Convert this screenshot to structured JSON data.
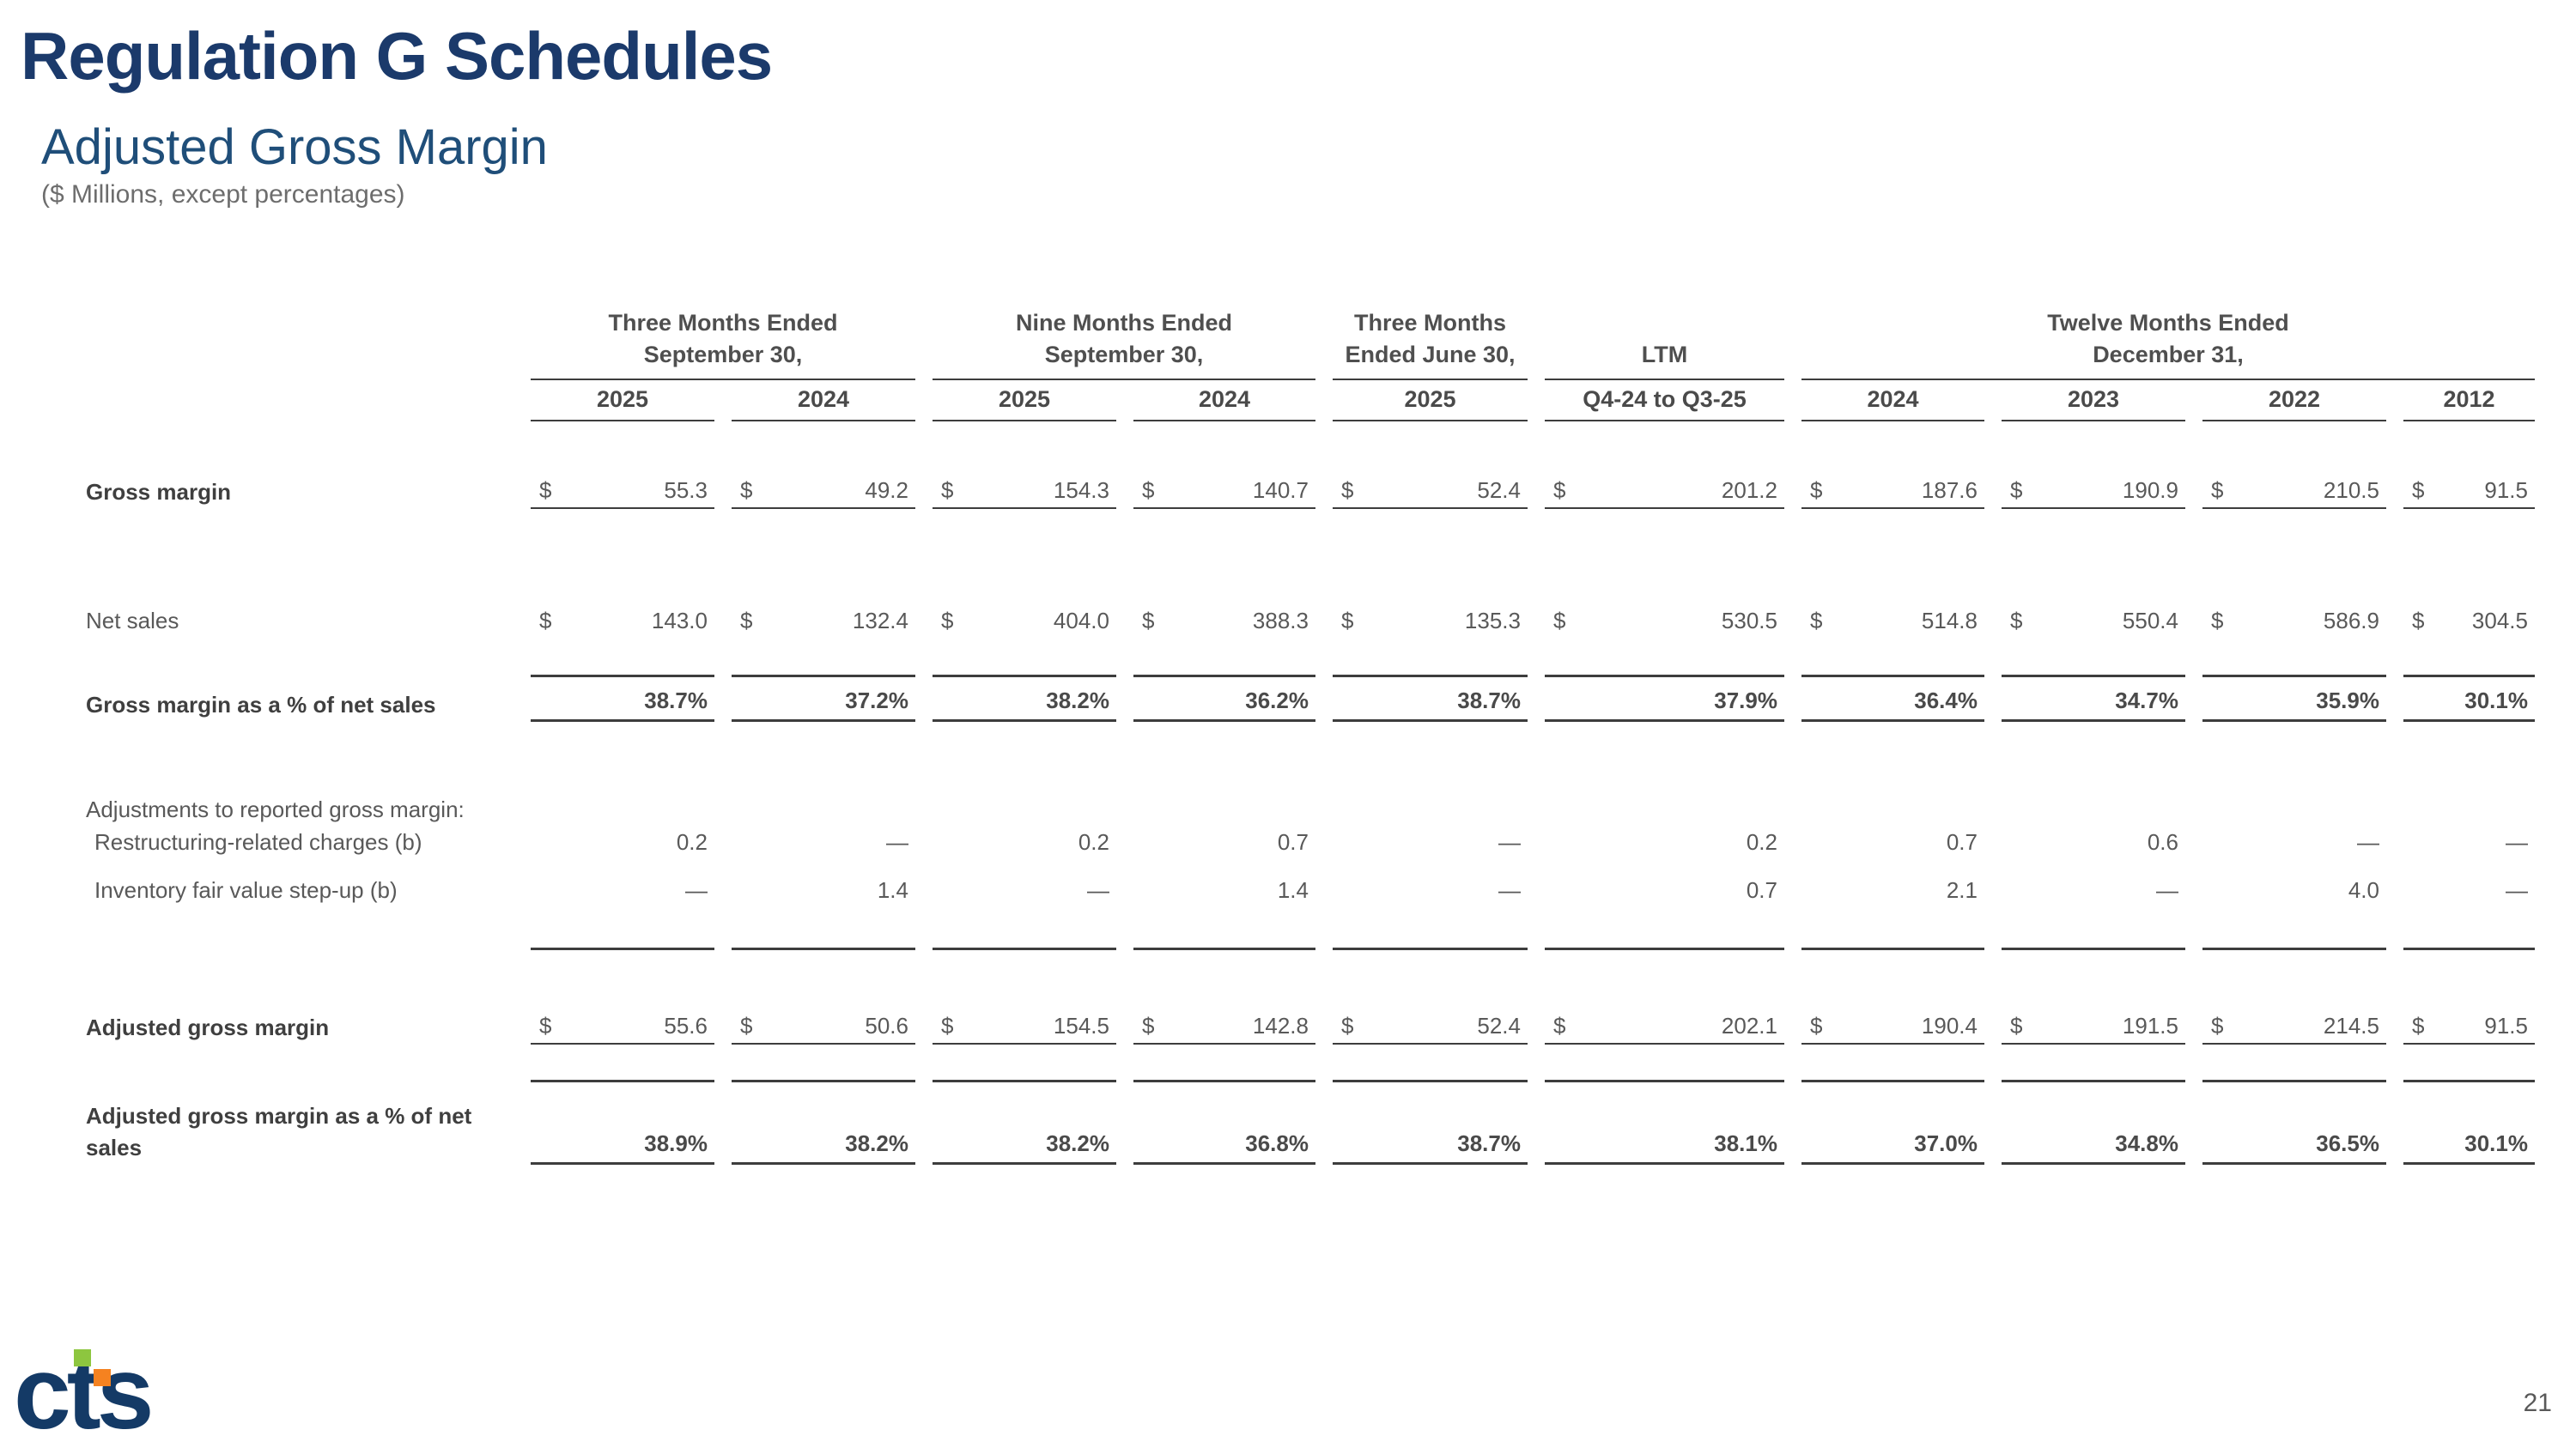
{
  "slide": {
    "title": "Regulation G Schedules",
    "subtitle": "Adjusted Gross Margin",
    "units_note": "($ Millions, except percentages)",
    "page_number": "21"
  },
  "logo": {
    "text": "cts"
  },
  "colors": {
    "title_navy": "#1B3A6B",
    "subtitle_blue": "#1F4E79",
    "body_text": "#595959",
    "label_text": "#3F3F3F",
    "rule": "#3D3D3D",
    "logo_navy": "#143A66",
    "logo_green": "#8DC63F",
    "logo_orange": "#F58220"
  },
  "table": {
    "currency_symbol": "$",
    "column_groups": [
      {
        "line1": "Three Months Ended",
        "line2": "September 30,"
      },
      {
        "line1": "Nine Months Ended",
        "line2": "September 30,"
      },
      {
        "line1": "Three Months",
        "line2": "Ended June 30,"
      },
      {
        "line1": "LTM",
        "line2": ""
      },
      {
        "line1": "Twelve Months Ended",
        "line2": "December 31,"
      }
    ],
    "periods": [
      "2025",
      "2024",
      "2025",
      "2024",
      "2025",
      "Q4-24 to Q3-25",
      "2024",
      "2023",
      "2022",
      "2012"
    ],
    "rows": {
      "gross_margin": {
        "label": "Gross margin",
        "values": [
          "55.3",
          "49.2",
          "154.3",
          "140.7",
          "52.4",
          "201.2",
          "187.6",
          "190.9",
          "210.5",
          "91.5"
        ]
      },
      "net_sales": {
        "label": "Net sales",
        "values": [
          "143.0",
          "132.4",
          "404.0",
          "388.3",
          "135.3",
          "530.5",
          "514.8",
          "550.4",
          "586.9",
          "304.5"
        ]
      },
      "gross_margin_pct": {
        "label": "Gross margin as a % of net sales",
        "values": [
          "38.7%",
          "37.2%",
          "38.2%",
          "36.2%",
          "38.7%",
          "37.9%",
          "36.4%",
          "34.7%",
          "35.9%",
          "30.1%"
        ]
      },
      "adjustments_header": {
        "label": "Adjustments to reported gross margin:"
      },
      "restructuring": {
        "label": "Restructuring-related charges (b)",
        "values": [
          "0.2",
          "—",
          "0.2",
          "0.7",
          "—",
          "0.2",
          "0.7",
          "0.6",
          "—",
          "—"
        ]
      },
      "inventory": {
        "label": "Inventory fair value step-up (b)",
        "values": [
          "—",
          "1.4",
          "—",
          "1.4",
          "—",
          "0.7",
          "2.1",
          "—",
          "4.0",
          "—"
        ]
      },
      "adjusted_gross_margin": {
        "label": "Adjusted gross margin",
        "values": [
          "55.6",
          "50.6",
          "154.5",
          "142.8",
          "52.4",
          "202.1",
          "190.4",
          "191.5",
          "214.5",
          "91.5"
        ]
      },
      "adjusted_gross_margin_pct": {
        "label": "Adjusted gross margin as a % of net sales",
        "values": [
          "38.9%",
          "38.2%",
          "38.2%",
          "36.8%",
          "38.7%",
          "38.1%",
          "37.0%",
          "34.8%",
          "36.5%",
          "30.1%"
        ]
      }
    }
  }
}
